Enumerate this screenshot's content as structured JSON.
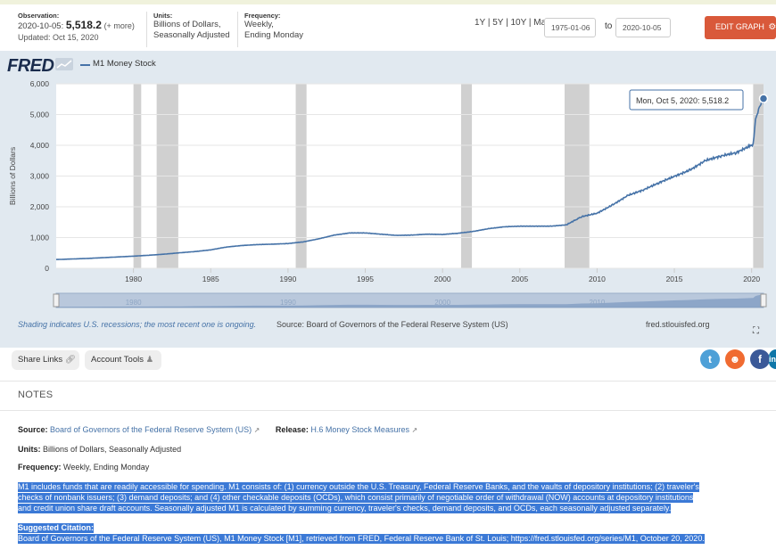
{
  "header": {
    "observation_label": "Observation:",
    "observation_date": "2020-10-05:",
    "observation_value": "5,518.2",
    "observation_more": "(+ more)",
    "updated": "Updated: Oct 15, 2020",
    "units_label": "Units:",
    "units_line1": "Billions of Dollars,",
    "units_line2": "Seasonally Adjusted",
    "frequency_label": "Frequency:",
    "frequency_line1": "Weekly,",
    "frequency_line2": "Ending Monday",
    "range_1y": "1Y",
    "range_5y": "5Y",
    "range_10y": "10Y",
    "range_max": "Max",
    "range_sep": "|",
    "start_date": "1975-01-06",
    "to_label": "to",
    "end_date": "2020-10-05",
    "edit_graph": "EDIT GRAPH"
  },
  "chart": {
    "logo": "FRED",
    "series_name": "M1 Money Stock",
    "ylabel": "Billions of Dollars",
    "tooltip_date": "Mon, Oct 5, 2020:",
    "tooltip_value": "5,518.2",
    "recession_note": "Shading indicates U.S. recessions; the most recent one is ongoing.",
    "source_note": "Source: Board of Governors of the Federal Reserve System (US)",
    "site": "fred.stlouisfed.org"
  },
  "chart_data": {
    "type": "line",
    "title": "",
    "xlabel": "",
    "ylabel": "Billions of Dollars",
    "ylim": [
      0,
      6000
    ],
    "xlim": [
      1975.0,
      2020.77
    ],
    "yticks": [
      0,
      1000,
      2000,
      3000,
      4000,
      5000,
      6000
    ],
    "ytick_labels": [
      "0",
      "1,000",
      "2,000",
      "3,000",
      "4,000",
      "5,000",
      "6,000"
    ],
    "xticks": [
      1980,
      1985,
      1990,
      1995,
      2000,
      2005,
      2010,
      2015,
      2020
    ],
    "navigator_ticks": [
      1980,
      1990,
      2000,
      2010
    ],
    "grid": true,
    "legend": "top-left",
    "recessions": [
      [
        1980.0,
        1980.5
      ],
      [
        1981.5,
        1982.9
      ],
      [
        1990.5,
        1991.2
      ],
      [
        2001.2,
        2001.9
      ],
      [
        2007.9,
        2009.5
      ],
      [
        2020.1,
        2020.77
      ]
    ],
    "series": [
      {
        "name": "M1 Money Stock",
        "color": "#4572a7",
        "x": [
          1975.0,
          1977,
          1979,
          1980,
          1981,
          1982,
          1983,
          1984,
          1985,
          1986,
          1987,
          1988,
          1989,
          1990,
          1991,
          1992,
          1993,
          1994,
          1995,
          1996,
          1997,
          1998,
          1999,
          2000,
          2001,
          2002,
          2003,
          2004,
          2005,
          2006,
          2007,
          2008,
          2008.7,
          2009,
          2010,
          2011,
          2012,
          2013,
          2014,
          2015,
          2016,
          2017,
          2018,
          2019,
          2019.9,
          2020.1,
          2020.25,
          2020.4,
          2020.6,
          2020.77
        ],
        "y": [
          285,
          320,
          370,
          395,
          425,
          460,
          505,
          545,
          600,
          690,
          740,
          770,
          785,
          805,
          860,
          960,
          1080,
          1150,
          1150,
          1110,
          1070,
          1080,
          1110,
          1100,
          1140,
          1200,
          1290,
          1350,
          1370,
          1370,
          1370,
          1410,
          1600,
          1680,
          1790,
          2060,
          2370,
          2550,
          2780,
          2990,
          3190,
          3500,
          3650,
          3760,
          3980,
          4020,
          4850,
          5100,
          5350,
          5518
        ]
      }
    ]
  },
  "share": {
    "share_links": "Share Links",
    "account_tools": "Account Tools"
  },
  "notes": {
    "title": "NOTES",
    "source_label": "Source:",
    "source_text": "Board of Governors of the Federal Reserve System (US)",
    "release_label": "Release:",
    "release_text": "H.6 Money Stock Measures",
    "units_label": "Units:",
    "units_text": "Billions of Dollars, Seasonally Adjusted",
    "frequency_label": "Frequency:",
    "frequency_text": "Weekly, Ending Monday",
    "desc_line1": "M1 includes funds that are readily accessible for spending. M1 consists of: (1) currency outside the U.S. Treasury, Federal Reserve Banks, and the vaults of depository institutions; (2) traveler's",
    "desc_line2": "checks of nonbank issuers; (3) demand deposits; and (4) other checkable deposits (OCDs), which consist primarily of negotiable order of withdrawal (NOW) accounts at depository institutions",
    "desc_line3": "and credit union share draft accounts. Seasonally adjusted M1 is calculated by summing currency, traveler's checks, demand deposits, and OCDs, each seasonally adjusted separately.",
    "citation_label": "Suggested Citation:",
    "citation_text": "Board of Governors of the Federal Reserve System (US), M1 Money Stock [M1], retrieved from FRED, Federal Reserve Bank of St. Louis; https://fred.stlouisfed.org/series/M1, October 20, 2020."
  },
  "colors": {
    "accent": "#d9593a",
    "series": "#4572a7",
    "chart_bg": "#e1e9f0",
    "recession": "#c8c8c8",
    "highlight": "#3b79d6"
  }
}
